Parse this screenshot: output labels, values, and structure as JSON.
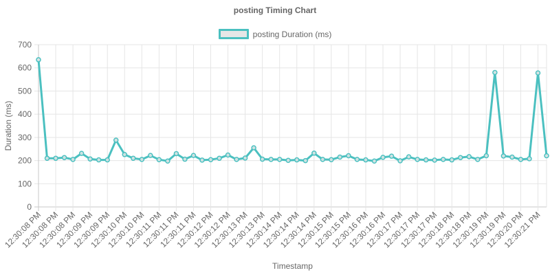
{
  "chart_data": {
    "type": "line",
    "title": "posting Timing Chart",
    "xlabel": "Timestamp",
    "ylabel": "Duration (ms)",
    "ylim": [
      0,
      700
    ],
    "yticks": [
      0,
      100,
      200,
      300,
      400,
      500,
      600,
      700
    ],
    "grid": true,
    "legend_position": "top-center",
    "line_color": "#4bc0c0",
    "x_tick_labels": [
      "12:30:08 PM",
      "12:30:08 PM",
      "12:30:08 PM",
      "12:30:09 PM",
      "12:30:09 PM",
      "12:30:10 PM",
      "12:30:10 PM",
      "12:30:11 PM",
      "12:30:11 PM",
      "12:30:11 PM",
      "12:30:12 PM",
      "12:30:12 PM",
      "12:30:13 PM",
      "12:30:13 PM",
      "12:30:14 PM",
      "12:30:14 PM",
      "12:30:14 PM",
      "12:30:15 PM",
      "12:30:15 PM",
      "12:30:16 PM",
      "12:30:16 PM",
      "12:30:17 PM",
      "12:30:17 PM",
      "12:30:17 PM",
      "12:30:18 PM",
      "12:30:18 PM",
      "12:30:19 PM",
      "12:30:19 PM",
      "12:30:20 PM",
      "12:30:21 PM"
    ],
    "series": [
      {
        "name": "posting Duration (ms)",
        "values": [
          635,
          210,
          210,
          213,
          205,
          231,
          207,
          203,
          203,
          288,
          226,
          210,
          205,
          222,
          204,
          198,
          230,
          206,
          222,
          202,
          204,
          210,
          224,
          205,
          211,
          255,
          206,
          205,
          205,
          201,
          203,
          200,
          232,
          205,
          204,
          215,
          221,
          205,
          203,
          198,
          214,
          219,
          199,
          216,
          205,
          203,
          202,
          205,
          203,
          213,
          217,
          205,
          221,
          580,
          220,
          215,
          205,
          208,
          578,
          221
        ]
      }
    ]
  }
}
